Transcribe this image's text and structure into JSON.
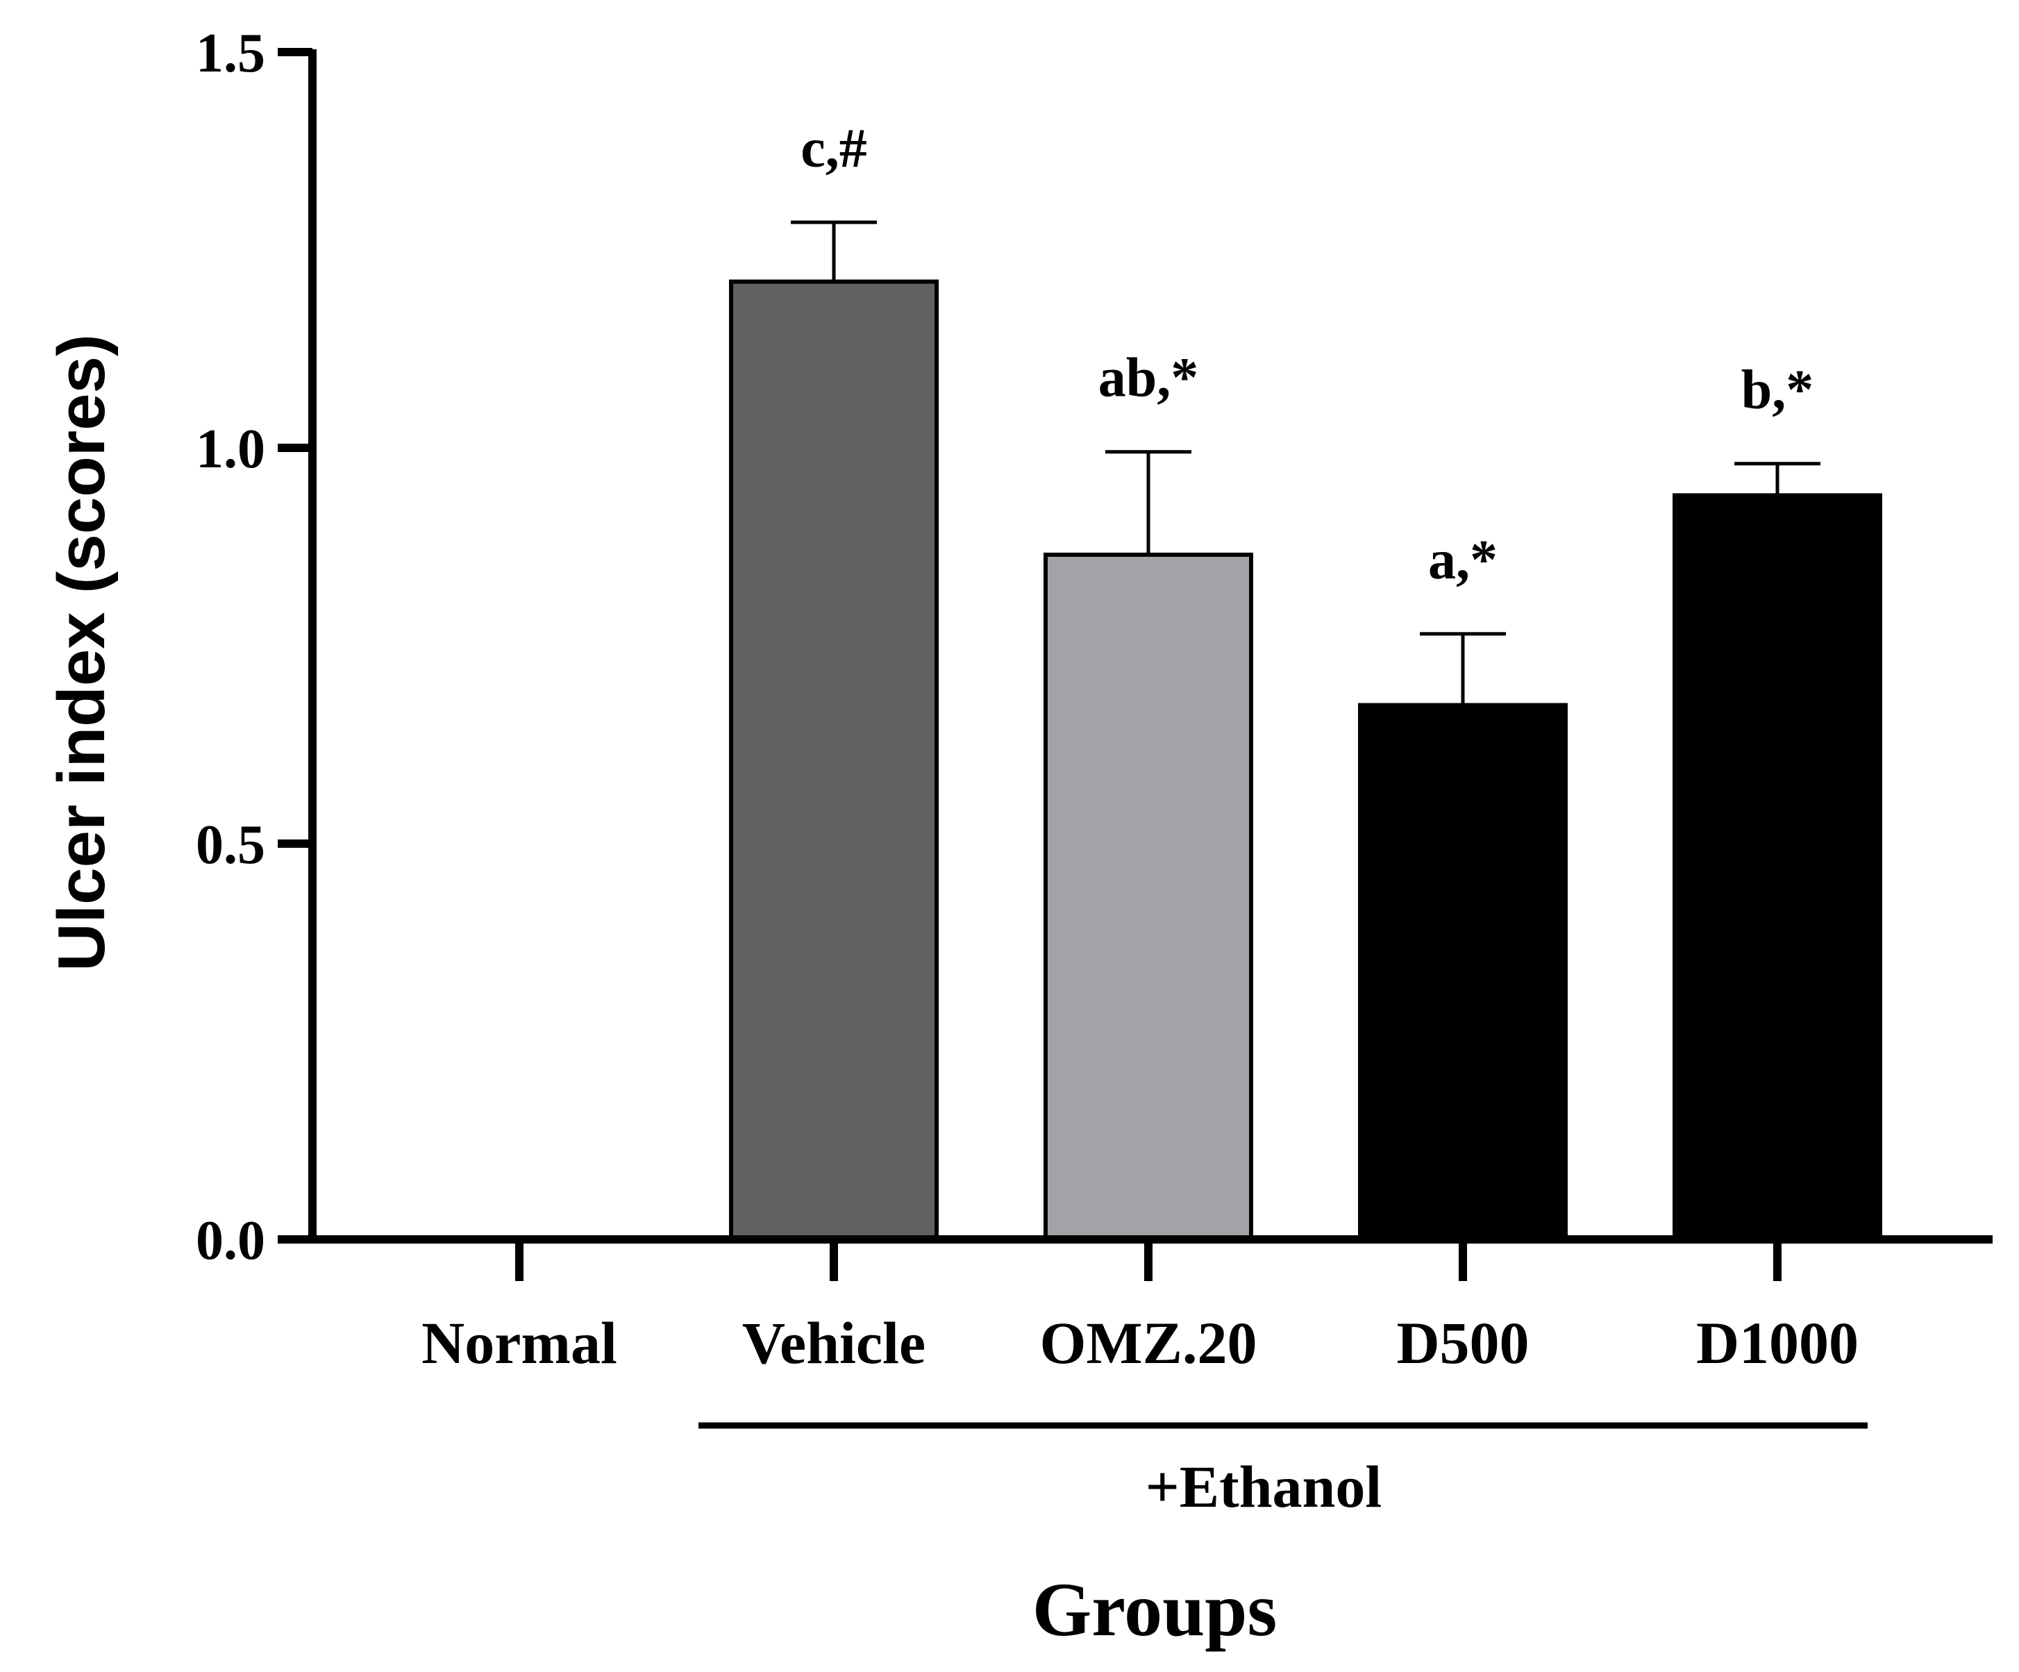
{
  "chart_data": {
    "type": "bar",
    "title": "",
    "xlabel": "Groups",
    "ylabel": "Ulcer index (scores)",
    "ylim": [
      0,
      1.5
    ],
    "yticks": [
      "0.0",
      "0.5",
      "1.0",
      "1.5"
    ],
    "categories": [
      "Normal",
      "Vehicle",
      "OMZ.20",
      "D500",
      "D1000"
    ],
    "values": [
      0,
      1.21,
      0.865,
      0.675,
      0.94
    ],
    "errors": [
      0,
      0.075,
      0.13,
      0.09,
      0.04
    ],
    "annotations": [
      "",
      "c,#",
      "ab,*",
      "a,*",
      "b,*"
    ],
    "bar_colors": [
      "#ffffff",
      "#616161",
      "#a3a3a7",
      "#000000",
      "#000000"
    ],
    "group_bracket": {
      "label": "+Ethanol",
      "from": "Vehicle",
      "to": "D1000"
    }
  }
}
